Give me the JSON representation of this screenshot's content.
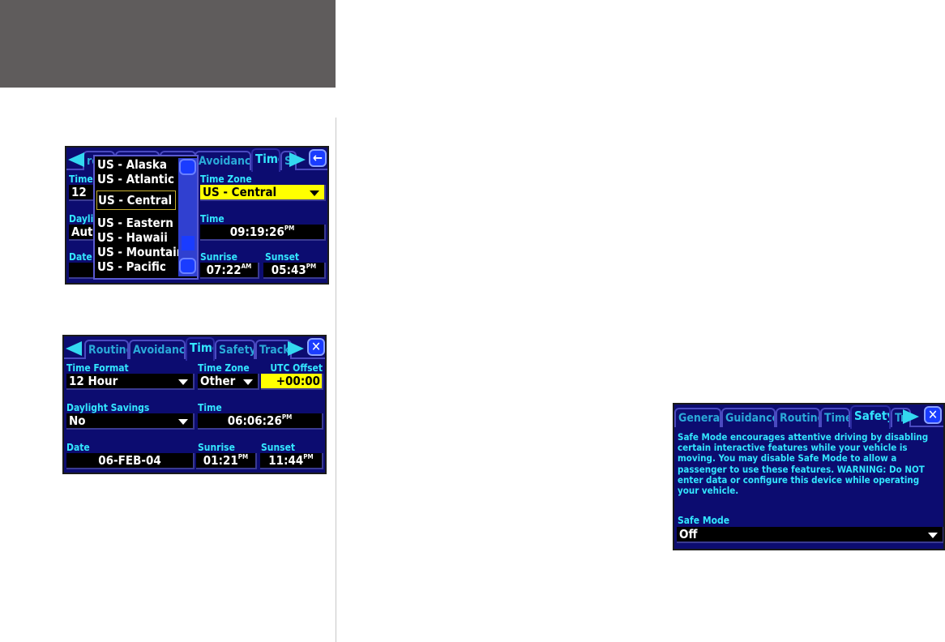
{
  "screen1": {
    "tabs": [
      "ro",
      "",
      "",
      "Avoidance",
      "Time",
      "S"
    ],
    "active_tab": "Time",
    "labels": {
      "time_format": "Time",
      "time_zone": "Time Zone",
      "daylight": "Dayli",
      "time": "Time",
      "date": "Date",
      "sunrise": "Sunrise",
      "sunset": "Sunset"
    },
    "values": {
      "time_format": "12",
      "time_zone": "US - Central",
      "daylight": "Auto",
      "time": "09:19:26",
      "time_ampm": "PM",
      "sunrise": "07:22",
      "sunrise_ampm": "AM",
      "sunset": "05:43",
      "sunset_ampm": "PM"
    },
    "dropdown": [
      "US - Alaska",
      "US - Atlantic",
      "US - Central",
      "US - Eastern",
      "US - Hawaii",
      "US - Mountain",
      "US - Pacific"
    ],
    "dropdown_selected": "US - Central",
    "back_icon": "arrow-left-icon"
  },
  "screen2": {
    "tabs": [
      "Routing",
      "Avoidance",
      "Time",
      "Safety",
      "Track"
    ],
    "active_tab": "Time",
    "labels": {
      "time_format": "Time Format",
      "time_zone": "Time Zone",
      "utc_offset": "UTC Offset",
      "daylight": "Daylight Savings",
      "time": "Time",
      "date": "Date",
      "sunrise": "Sunrise",
      "sunset": "Sunset"
    },
    "values": {
      "time_format": "12 Hour",
      "time_zone": "Other",
      "utc_offset": "+00:00",
      "daylight": "No",
      "time": "06:06:26",
      "time_ampm": "PM",
      "date": "06-FEB-04",
      "sunrise": "01:21",
      "sunrise_ampm": "PM",
      "sunset": "11:44",
      "sunset_ampm": "PM"
    },
    "close_icon": "close-icon"
  },
  "screen3": {
    "tabs": [
      "General",
      "Guidance",
      "Routing",
      "Time",
      "Safety",
      "Tr"
    ],
    "active_tab": "Safety",
    "description": "Safe Mode encourages attentive driving by disabling certain interactive features while your vehicle is moving.  You may disable Safe Mode to allow a passenger to use these features.  WARNING:  Do NOT enter data or configure this device while operating your vehicle.",
    "safe_mode_label": "Safe Mode",
    "safe_mode_value": "Off"
  },
  "colors": {
    "screen_bg": "#0c0c70",
    "label": "#33e6ff",
    "highlight": "#ffff00",
    "header": "#5f5c5c"
  }
}
